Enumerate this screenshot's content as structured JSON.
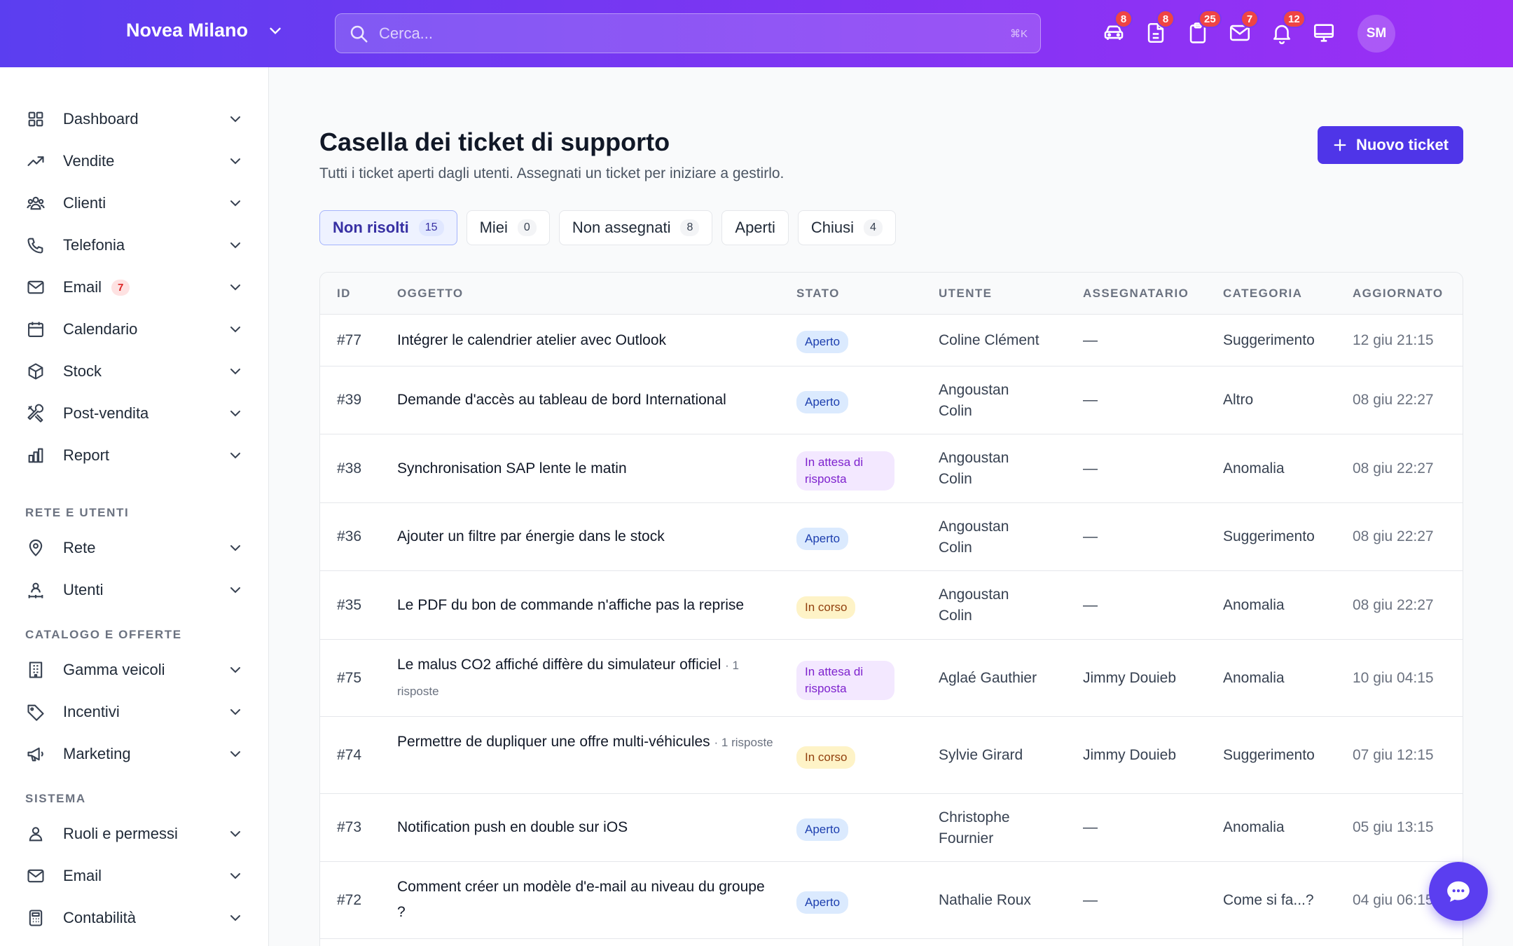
{
  "header": {
    "brand": "Novea Milano",
    "search_placeholder": "Cerca...",
    "search_shortcut": "⌘K",
    "icons": [
      {
        "name": "car-icon",
        "badge": "8"
      },
      {
        "name": "document-icon",
        "badge": "8"
      },
      {
        "name": "clipboard-icon",
        "badge": "25"
      },
      {
        "name": "mail-icon",
        "badge": "7"
      },
      {
        "name": "bell-icon",
        "badge": "12"
      },
      {
        "name": "monitor-icon",
        "badge": ""
      }
    ],
    "avatar": "SM"
  },
  "sidebar": {
    "items": [
      {
        "label": "Dashboard",
        "icon": "grid-icon"
      },
      {
        "label": "Vendite",
        "icon": "trending-icon"
      },
      {
        "label": "Clienti",
        "icon": "users-icon"
      },
      {
        "label": "Telefonia",
        "icon": "phone-icon"
      },
      {
        "label": "Email",
        "icon": "mail-icon",
        "badge": "7"
      },
      {
        "label": "Calendario",
        "icon": "calendar-icon"
      },
      {
        "label": "Stock",
        "icon": "box-icon"
      },
      {
        "label": "Post-vendita",
        "icon": "tools-icon"
      },
      {
        "label": "Report",
        "icon": "bar-chart-icon"
      }
    ],
    "section_network": "RETE E UTENTI",
    "network_items": [
      {
        "label": "Rete",
        "icon": "map-pin-icon"
      },
      {
        "label": "Utenti",
        "icon": "user-network-icon"
      }
    ],
    "section_catalog": "CATALOGO E OFFERTE",
    "catalog_items": [
      {
        "label": "Gamma veicoli",
        "icon": "building-icon"
      },
      {
        "label": "Incentivi",
        "icon": "tag-icon"
      },
      {
        "label": "Marketing",
        "icon": "megaphone-icon"
      }
    ],
    "section_system": "SISTEMA",
    "system_items": [
      {
        "label": "Ruoli e permessi",
        "icon": "user-icon"
      },
      {
        "label": "Email",
        "icon": "mail-icon"
      },
      {
        "label": "Contabilità",
        "icon": "calculator-icon"
      }
    ]
  },
  "main": {
    "title": "Casella dei ticket di supporto",
    "subtitle": "Tutti i ticket aperti dagli utenti. Assegnati un ticket per iniziare a gestirlo.",
    "new_ticket_label": "Nuovo ticket",
    "tabs": [
      {
        "label": "Non risolti",
        "count": "15",
        "active": true
      },
      {
        "label": "Miei",
        "count": "0"
      },
      {
        "label": "Non assegnati",
        "count": "8"
      },
      {
        "label": "Aperti",
        "count": ""
      },
      {
        "label": "Chiusi",
        "count": "4"
      }
    ],
    "columns": [
      "ID",
      "OGGETTO",
      "STATO",
      "UTENTE",
      "ASSEGNATARIO",
      "CATEGORIA",
      "AGGIORNATO"
    ],
    "rows": [
      {
        "id": "#77",
        "subject": "Intégrer le calendrier atelier avec Outlook",
        "meta": "",
        "status": "Aperto",
        "status_type": "open",
        "user": "Coline Clément",
        "assignee": "—",
        "category": "Suggerimento",
        "updated": "12 giu 21:15"
      },
      {
        "id": "#39",
        "subject": "Demande d'accès au tableau de bord International",
        "meta": "",
        "status": "Aperto",
        "status_type": "open",
        "user": "Angoustan Colin",
        "assignee": "—",
        "category": "Altro",
        "updated": "08 giu 22:27"
      },
      {
        "id": "#38",
        "subject": "Synchronisation SAP lente le matin",
        "meta": "",
        "status": "In attesa di risposta",
        "status_type": "wait",
        "user": "Angoustan Colin",
        "assignee": "—",
        "category": "Anomalia",
        "updated": "08 giu 22:27"
      },
      {
        "id": "#36",
        "subject": "Ajouter un filtre par énergie dans le stock",
        "meta": "",
        "status": "Aperto",
        "status_type": "open",
        "user": "Angoustan Colin",
        "assignee": "—",
        "category": "Suggerimento",
        "updated": "08 giu 22:27"
      },
      {
        "id": "#35",
        "subject": "Le PDF du bon de commande n'affiche pas la reprise",
        "meta": "",
        "status": "In corso",
        "status_type": "prog",
        "user": "Angoustan Colin",
        "assignee": "—",
        "category": "Anomalia",
        "updated": "08 giu 22:27"
      },
      {
        "id": "#75",
        "subject": "Le malus CO2 affiché diffère du simulateur officiel",
        "meta": "· 1 risposte",
        "status": "In attesa di risposta",
        "status_type": "wait",
        "user": "Aglaé Gauthier",
        "assignee": "Jimmy Douieb",
        "category": "Anomalia",
        "updated": "10 giu 04:15"
      },
      {
        "id": "#74",
        "subject": "Permettre de dupliquer une offre multi-véhicules",
        "meta": "· 1 risposte",
        "status": "In corso",
        "status_type": "prog",
        "user": "Sylvie Girard",
        "assignee": "Jimmy Douieb",
        "category": "Suggerimento",
        "updated": "07 giu 12:15"
      },
      {
        "id": "#73",
        "subject": "Notification push en double sur iOS",
        "meta": "",
        "status": "Aperto",
        "status_type": "open",
        "user": "Christophe Fournier",
        "assignee": "—",
        "category": "Anomalia",
        "updated": "05 giu 13:15"
      },
      {
        "id": "#72",
        "subject": "Comment créer un modèle d'e-mail au niveau du groupe ?",
        "meta": "",
        "status": "Aperto",
        "status_type": "open",
        "user": "Nathalie Roux",
        "assignee": "—",
        "category": "Come si fa...?",
        "updated": "04 giu 06:15"
      }
    ]
  },
  "colors": {
    "header_gradient_start": "#5b3ef0",
    "header_gradient_end": "#9c2ff5",
    "accent": "#4f35e8",
    "badge_red": "#ef4444"
  }
}
